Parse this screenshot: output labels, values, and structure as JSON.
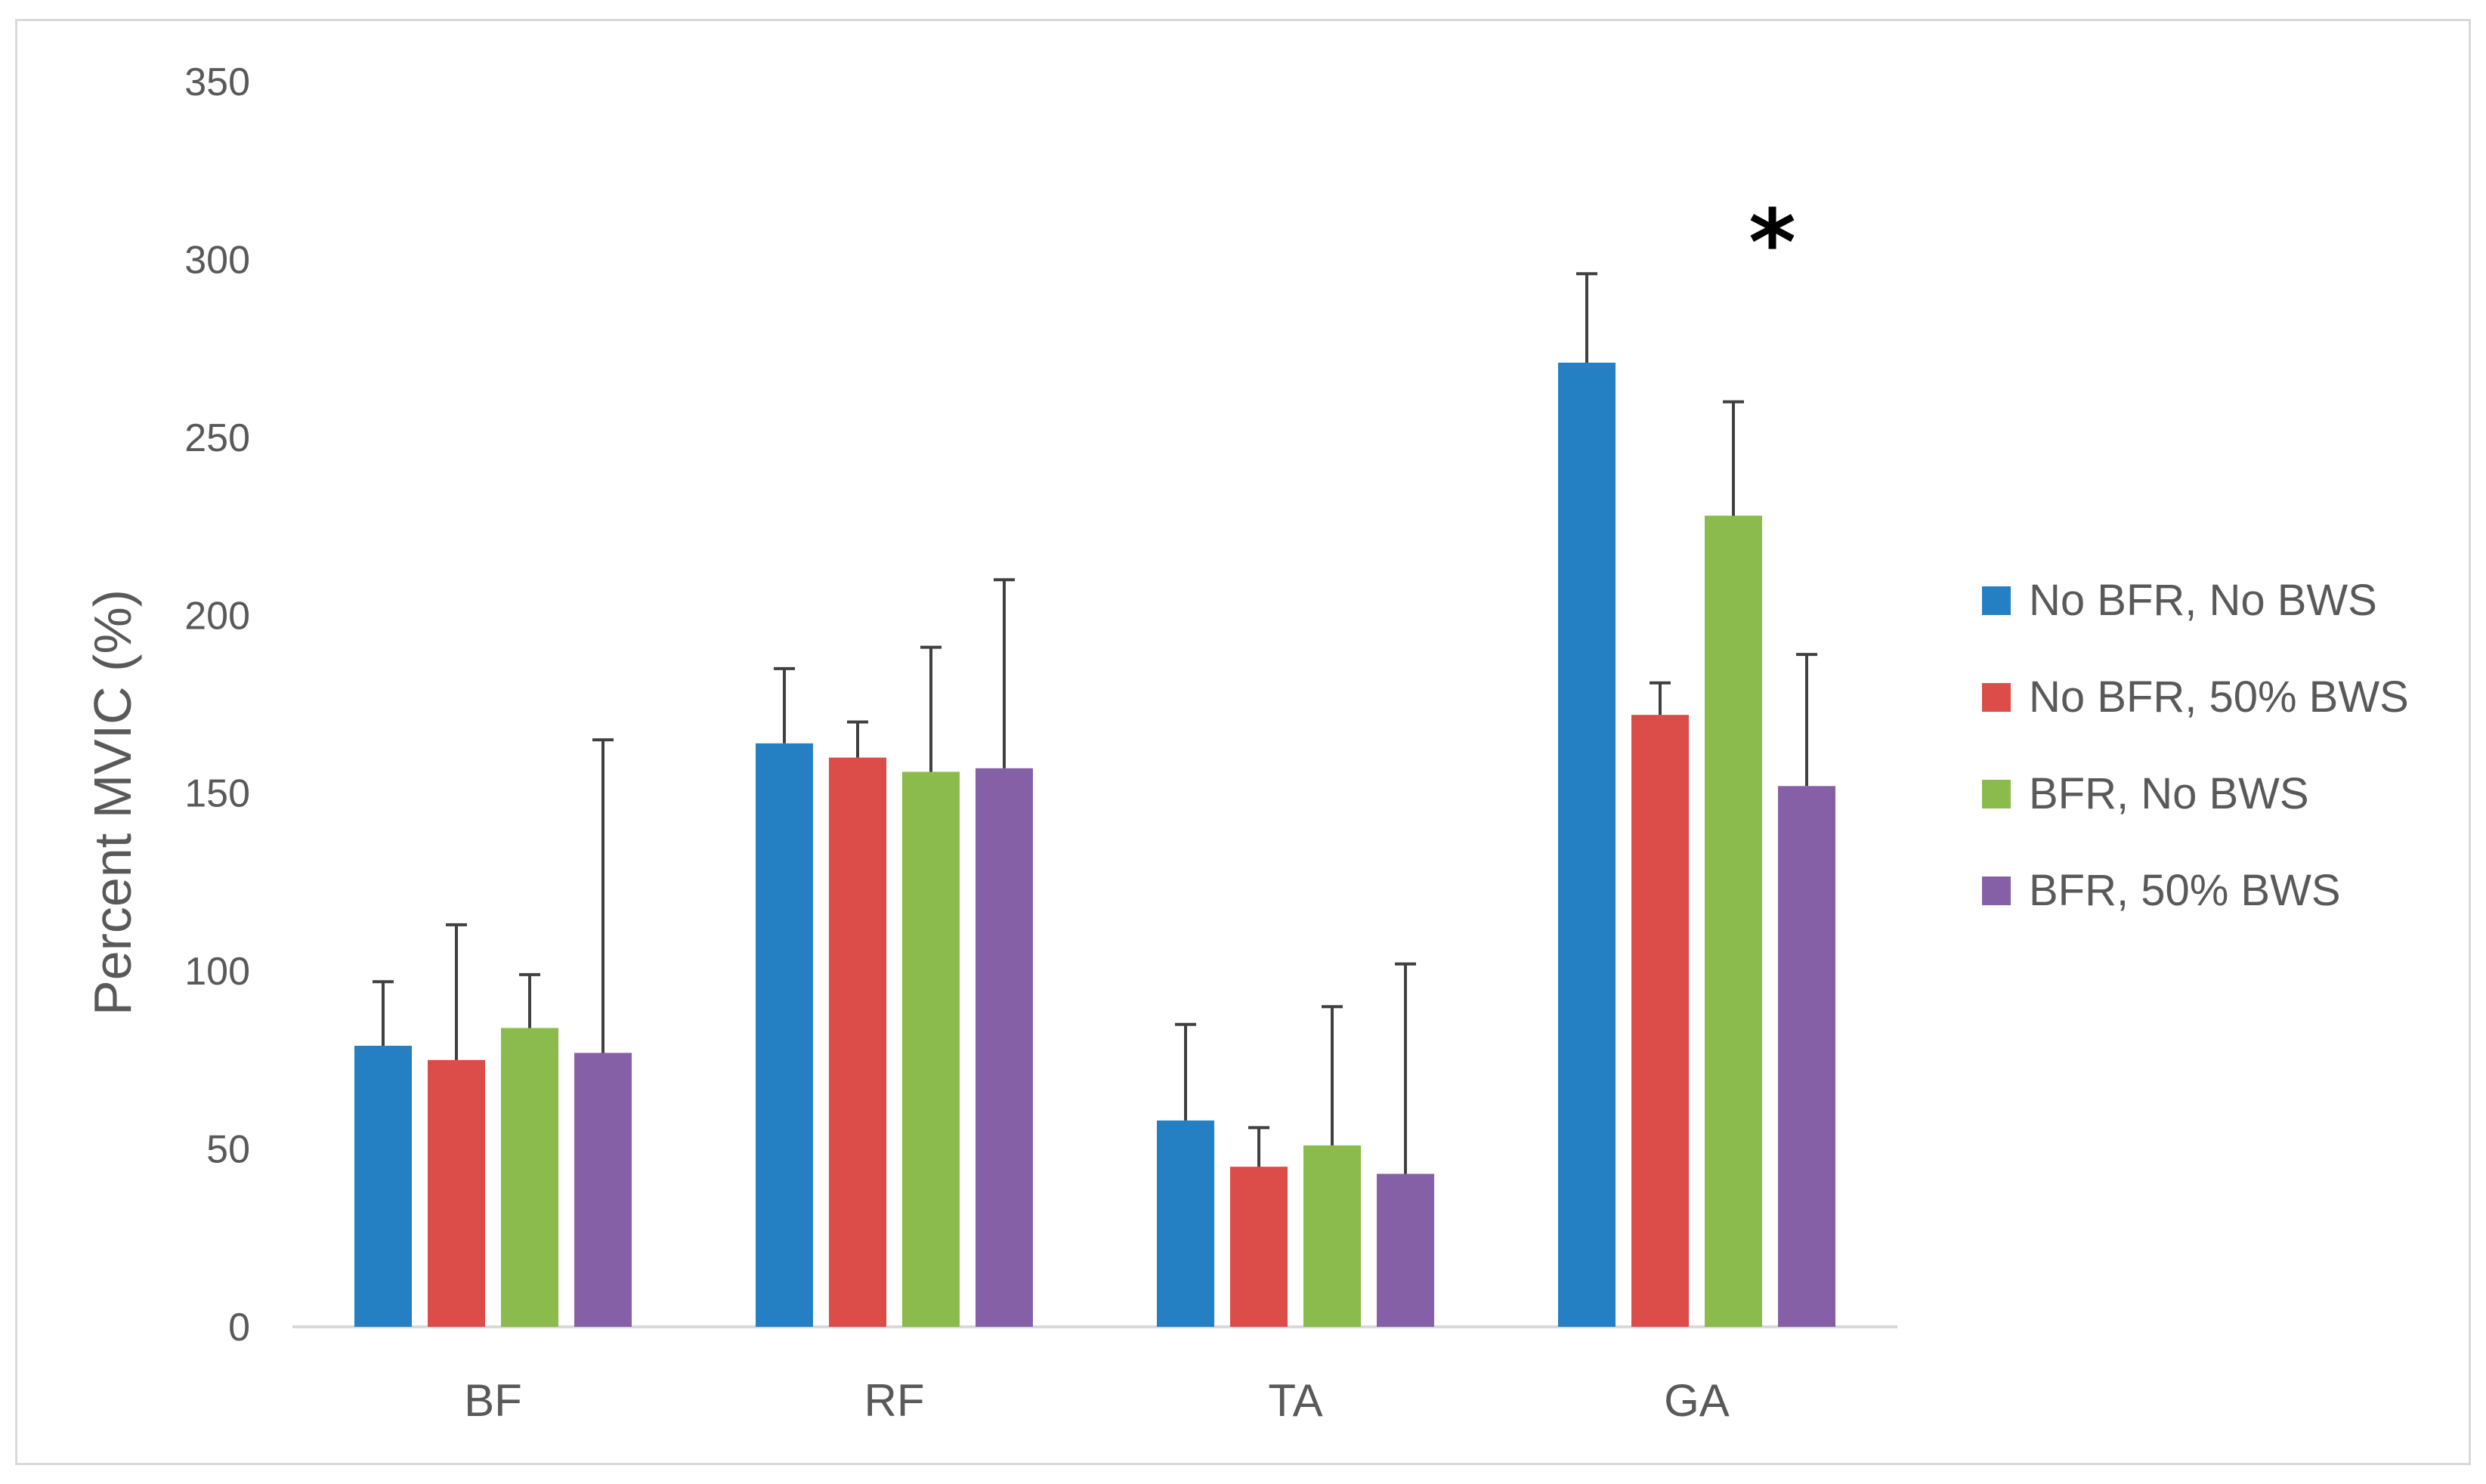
{
  "chart_data": {
    "type": "bar",
    "title": "",
    "xlabel": "",
    "ylabel": "Percent MVIC (%)",
    "ylim": [
      0,
      350
    ],
    "yticks": [
      "0",
      "50",
      "100",
      "150",
      "200",
      "250",
      "300",
      "350"
    ],
    "grid": false,
    "legend_position": "right",
    "categories": [
      "BF",
      "RF",
      "TA",
      "GA"
    ],
    "series": [
      {
        "name": "No BFR, No BWS",
        "color": "#2580c3",
        "values": [
          79,
          164,
          58,
          271
        ],
        "error_upper": [
          97,
          185,
          85,
          296
        ]
      },
      {
        "name": "No BFR, 50% BWS",
        "color": "#dc4d4a",
        "values": [
          75,
          160,
          45,
          172
        ],
        "error_upper": [
          113,
          170,
          56,
          181
        ]
      },
      {
        "name": "BFR, No BWS",
        "color": "#8bbb4c",
        "values": [
          84,
          156,
          51,
          228
        ],
        "error_upper": [
          99,
          191,
          90,
          260
        ]
      },
      {
        "name": "BFR, 50% BWS",
        "color": "#8560a6",
        "values": [
          77,
          157,
          43,
          152
        ],
        "error_upper": [
          165,
          210,
          102,
          189
        ]
      }
    ],
    "annotations": [
      {
        "text": "*",
        "category": "GA",
        "y": 315
      }
    ]
  }
}
